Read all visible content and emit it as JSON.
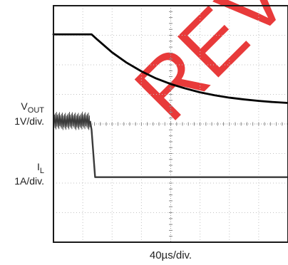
{
  "chart_data": {
    "type": "line",
    "title": "",
    "xlabel": "40µs/div.",
    "x_divisions": 8,
    "y_divisions": 8,
    "grid": true,
    "watermark": "REV",
    "series": [
      {
        "id": "vout",
        "name_main": "V",
        "name_sub": "OUT",
        "scale": "1V/div.",
        "ground_division": 4,
        "color": "#000000",
        "x": [
          0,
          0.5,
          1.0,
          1.3,
          1.5,
          2.0,
          2.5,
          3.0,
          3.5,
          4.0,
          4.5,
          5.0,
          5.5,
          6.0,
          6.5,
          7.0,
          7.5,
          8.0
        ],
        "y": [
          3.03,
          3.03,
          3.03,
          3.03,
          2.85,
          2.42,
          2.07,
          1.78,
          1.54,
          1.35,
          1.2,
          1.07,
          0.97,
          0.89,
          0.83,
          0.78,
          0.74,
          0.71
        ]
      },
      {
        "id": "il",
        "name_main": "I",
        "name_sub": "L",
        "scale": "1A/div.",
        "ground_division": 2.2,
        "color": "#3a3a3a",
        "x": [
          0,
          1.25,
          1.3,
          1.42,
          8.0
        ],
        "y": [
          1.9,
          1.9,
          1.6,
          0.0,
          0.0
        ],
        "ripple_until_x": 1.25,
        "ripple_amplitude_div": 0.32
      }
    ]
  }
}
